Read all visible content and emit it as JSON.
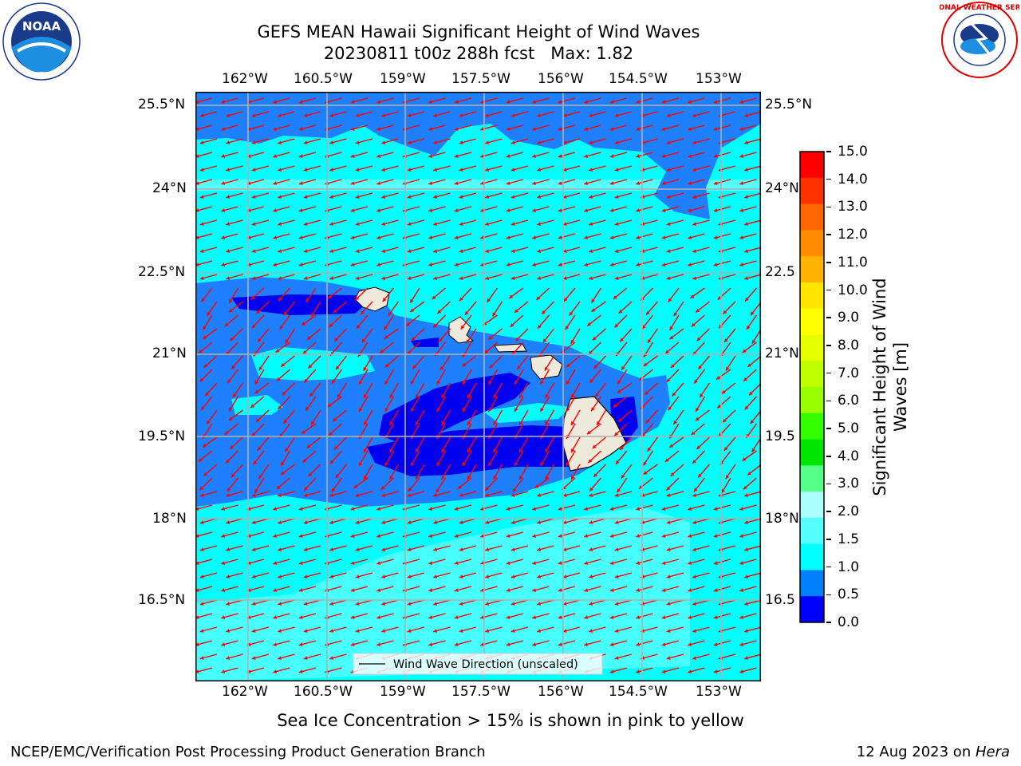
{
  "title_line1": "GEFS MEAN Hawaii Significant Height of Wind Waves",
  "title_line2": "20230811 t00z 288h fcst   Max: 1.82",
  "lon_ticks": [
    "162°W",
    "160.5°W",
    "159°W",
    "157.5°W",
    "156°W",
    "154.5°W",
    "153°W"
  ],
  "lat_ticks": [
    "25.5°N",
    "24°N",
    "22.5°N",
    "21°N",
    "19.5°N",
    "18°N",
    "16.5°N"
  ],
  "lat_ticks_right": [
    "25.5°N",
    "24°N",
    "22.5",
    "21°N",
    "19.5",
    "18°N",
    "16.5"
  ],
  "legend": {
    "label": "Wind Wave Direction (unscaled)"
  },
  "colorbar": {
    "label_line1": "Significant Height of Wind",
    "label_line2": "Waves [m]",
    "ticks": [
      "15.0",
      "14.0",
      "13.0",
      "12.0",
      "11.0",
      "10.0",
      "9.0",
      "8.0",
      "7.0",
      "6.0",
      "5.0",
      "4.0",
      "3.0",
      "2.0",
      "1.5",
      "1.0",
      "0.5",
      "0.0"
    ],
    "colors": [
      "#ff0000",
      "#ff3300",
      "#ff6600",
      "#ff8c00",
      "#ffb300",
      "#ffe600",
      "#ffff00",
      "#e6ff00",
      "#bfff00",
      "#99ff00",
      "#33ff00",
      "#00e600",
      "#55ff88",
      "#aaffff",
      "#55ffff",
      "#00ffff",
      "#0080ff",
      "#0000ff"
    ]
  },
  "map_colors": {
    "ocean_light": "#00ffff",
    "ocean_pale": "#55ffff",
    "ocean_mid": "#1e80ff",
    "ocean_dark": "#0000f0",
    "land": "#eeeadb",
    "arrow": "#ff0000"
  },
  "ice_note": "Sea Ice Concentration > 15% is shown in pink to yellow",
  "footer_left": "NCEP/EMC/Verification Post Processing Product Generation Branch",
  "footer_right_prefix": "12 Aug 2023 on ",
  "footer_right_italic": "Hera",
  "logos": {
    "noaa": "NOAA",
    "nws": "NATIONAL WEATHER SERVICE"
  }
}
